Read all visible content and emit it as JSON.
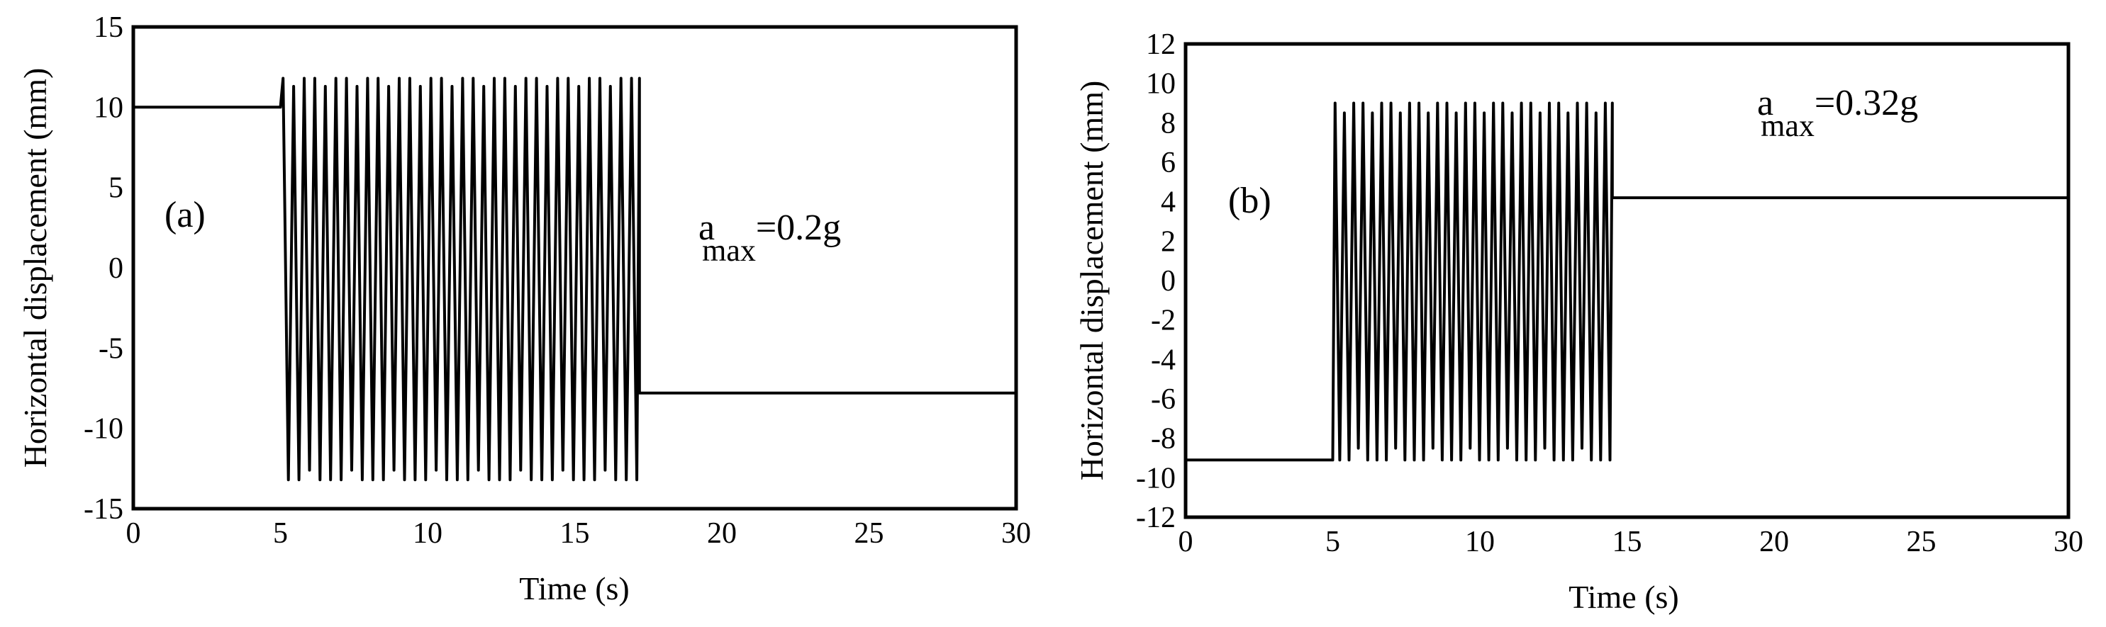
{
  "chart_data": [
    {
      "type": "line",
      "panel_label": "(a)",
      "xlabel": "Time (s)",
      "ylabel": "Horizontal displacement (mm)",
      "xlim": [
        0,
        30
      ],
      "ylim": [
        -15,
        15
      ],
      "xticks": [
        "0",
        "5",
        "10",
        "15",
        "20",
        "25",
        "30"
      ],
      "yticks": [
        "15",
        "10",
        "5",
        "0",
        "-5",
        "-10",
        "-15"
      ],
      "annotation": {
        "base": "a",
        "sub": "max",
        "rest": "=0.2g"
      },
      "series": [
        {
          "segments": [
            {
              "kind": "constant",
              "x": [
                0,
                5
              ],
              "y": 10
            },
            {
              "kind": "oscillation",
              "x": [
                5,
                17.2
              ],
              "cycles": 34,
              "upper": 11.8,
              "lower": -13.2
            },
            {
              "kind": "constant",
              "x": [
                17.2,
                30
              ],
              "y": -7.8
            }
          ]
        }
      ],
      "grid": false
    },
    {
      "type": "line",
      "panel_label": "(b)",
      "xlabel": "Time (s)",
      "ylabel": "Horizontal displacement (mm)",
      "xlim": [
        0,
        30
      ],
      "ylim": [
        -12,
        12
      ],
      "xticks": [
        "0",
        "5",
        "10",
        "15",
        "20",
        "25",
        "30"
      ],
      "yticks": [
        "12",
        "10",
        "8",
        "6",
        "4",
        "2",
        "0",
        "-2",
        "-4",
        "-6",
        "-8",
        "-10",
        "-12"
      ],
      "annotation": {
        "base": "a",
        "sub": "max",
        "rest": "=0.32g"
      },
      "series": [
        {
          "segments": [
            {
              "kind": "constant",
              "x": [
                0,
                5
              ],
              "y": -9.1
            },
            {
              "kind": "oscillation",
              "x": [
                5,
                14.5
              ],
              "cycles": 30,
              "upper": 9.0,
              "lower": -9.1
            },
            {
              "kind": "constant",
              "x": [
                14.5,
                30
              ],
              "y": 4.2
            }
          ]
        }
      ],
      "grid": false
    }
  ]
}
